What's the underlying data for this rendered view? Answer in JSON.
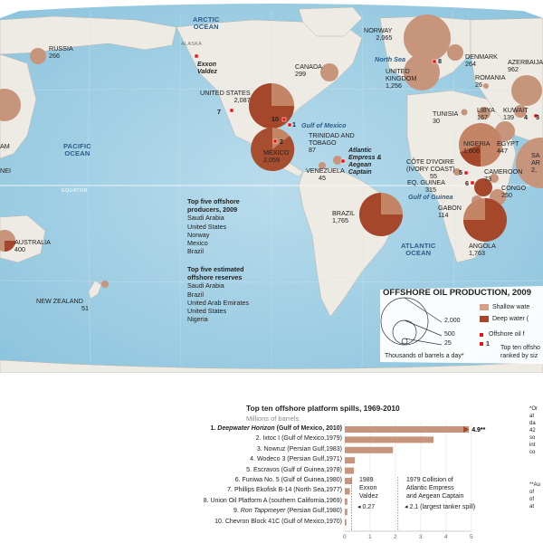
{
  "map": {
    "ocean_labels": {
      "arctic": "ARCTIC\nOCEAN",
      "pacific": "PACIFIC\nOCEAN",
      "atlantic": "ATLANTIC\nOCEAN"
    },
    "equator": "EQUATOR",
    "alaska": "ALASKA",
    "water_labels": {
      "north_sea": "North Sea",
      "gulf_mexico": "Gulf of Mexico",
      "gulf_guinea": "Gulf of Guinea"
    },
    "spill_sites": {
      "exxon_valdez": "Exxon\nValdez",
      "atlantic_empress": "Atlantic\nEmpress &\nAegean\nCaptain"
    },
    "countries": [
      {
        "name": "RUSSIA",
        "value": "266"
      },
      {
        "name": "CANADA",
        "value": "299"
      },
      {
        "name": "UNITED STATES",
        "value": "2,087"
      },
      {
        "name": "MEXICO",
        "value": "2,059"
      },
      {
        "name": "TRINIDAD AND\nTOBAGO",
        "value": "87"
      },
      {
        "name": "VENEZUELA",
        "value": "45"
      },
      {
        "name": "BRAZIL",
        "value": "1,765"
      },
      {
        "name": "NORWAY",
        "value": "2,065"
      },
      {
        "name": "UNITED\nKINGDOM",
        "value": "1,256"
      },
      {
        "name": "DENMARK",
        "value": "264"
      },
      {
        "name": "AZERBAIJAN",
        "value": "962"
      },
      {
        "name": "ROMANIA",
        "value": "26"
      },
      {
        "name": "TUNISIA",
        "value": "30"
      },
      {
        "name": "LIBYA",
        "value": "167"
      },
      {
        "name": "KUWAIT",
        "value": "139"
      },
      {
        "name": "EGYPT",
        "value": "447"
      },
      {
        "name": "NIGERIA",
        "value": "1,606"
      },
      {
        "name": "CÔTE D'IVOIRE\n(IVORY COAST)",
        "value": "55"
      },
      {
        "name": "CAMEROON",
        "value": "73"
      },
      {
        "name": "EQ. GUINEA",
        "value": "315"
      },
      {
        "name": "CONGO",
        "value": "250"
      },
      {
        "name": "GABON",
        "value": "114"
      },
      {
        "name": "ANGOLA",
        "value": "1,763"
      },
      {
        "name": "AUSTRALIA",
        "value": "400"
      },
      {
        "name": "NEW ZEALAND",
        "value": "51"
      },
      {
        "name": "SA\nAR",
        "value": "2,"
      },
      {
        "name": "AM",
        "value": ""
      },
      {
        "name": "NEI",
        "value": ""
      }
    ],
    "spill_markers": [
      "1",
      "2",
      "3",
      "4",
      "5",
      "6",
      "7",
      "8",
      "10"
    ],
    "top_producers": {
      "heading": "Top five offshore\nproducers, 2009",
      "items": [
        "Saudi Arabia",
        "United States",
        "Norway",
        "Mexico",
        "Brazil"
      ]
    },
    "top_reserves": {
      "heading": "Top five estimated\noffshore reserves",
      "items": [
        "Saudi Arabia",
        "Brazil",
        "United Arab Emirates",
        "United States",
        "Nigeria"
      ]
    },
    "legend": {
      "title": "OFFSHORE OIL PRODUCTION, 2009",
      "size_values": [
        "2,000",
        "500",
        "25"
      ],
      "unit": "Thousands of barrels a day*",
      "shallow": "Shallow wate",
      "deep": "Deep water (",
      "spill_label": "Offshore oil f",
      "spill_note1": "Top ten offsho",
      "spill_note2": "ranked by siz",
      "spill_example": "1",
      "colors": {
        "shallow": "#d4a088",
        "deep": "#a4472a"
      }
    }
  },
  "chart_data": {
    "type": "bar",
    "title": "Top ten offshore platform spills, 1969-2010",
    "subtitle": "Millions of barrels",
    "categories": [
      "1. Deepwater Horizon (Gulf of Mexico, 2010)",
      "2. Ixtoc I (Gulf of Mexico,1979)",
      "3. Nowruz (Persian Gulf,1983)",
      "4. Wodeco 3 (Persian Gulf,1971)",
      "5. Escravos (Gulf of Guinea,1978)",
      "6. Funiwa No. 5 (Gulf of Guinea,1980)",
      "7. Phillips Ekofisk B-14 (North Sea,1977)",
      "8. Union Oil Platform A (southern California,1969)",
      "9. Ron Tappmeyer (Persian Gulf,1980)",
      "10. Chevron Block 41C (Gulf of Mexico,1970)"
    ],
    "values": [
      4.9,
      3.5,
      1.9,
      0.4,
      0.36,
      0.28,
      0.2,
      0.1,
      0.1,
      0.065
    ],
    "xlim": [
      0,
      5
    ],
    "xticks": [
      "0",
      "1",
      "2",
      "3",
      "4",
      "5"
    ],
    "value_label": "4.9**",
    "bar_color": "#c7957c",
    "ref_lines": [
      {
        "x": 0.27,
        "label": "1989\nExxon\nValdez",
        "value_text": "0.27"
      },
      {
        "x": 2.1,
        "label": "1979 Collision of\nAtlantic Empress\nand Aegean Captain",
        "value_text": "2.1 (largest tanker spill)"
      }
    ]
  },
  "footnotes": {
    "note1": "*Or\nat\nda\n42\nso\nint\nco",
    "note2": "**Au\nof\nof\nat"
  }
}
